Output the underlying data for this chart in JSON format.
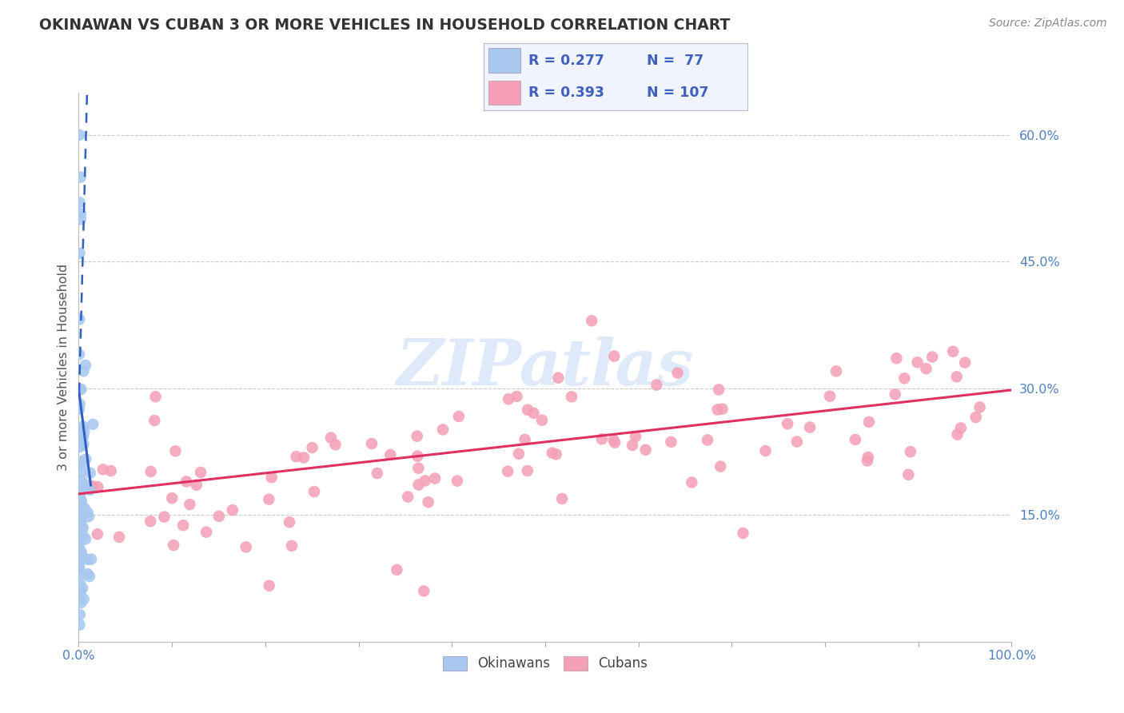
{
  "title": "OKINAWAN VS CUBAN 3 OR MORE VEHICLES IN HOUSEHOLD CORRELATION CHART",
  "source_text": "Source: ZipAtlas.com",
  "ylabel": "3 or more Vehicles in Household",
  "xlim": [
    0.0,
    1.0
  ],
  "ylim": [
    0.0,
    0.65
  ],
  "xtick_vals": [
    0.0,
    0.1,
    0.2,
    0.3,
    0.4,
    0.5,
    0.6,
    0.7,
    0.8,
    0.9,
    1.0
  ],
  "xtick_labels": [
    "0.0%",
    "",
    "",
    "",
    "",
    "",
    "",
    "",
    "",
    "",
    "100.0%"
  ],
  "ytick_vals": [
    0.0,
    0.15,
    0.3,
    0.45,
    0.6
  ],
  "ytick_labels": [
    "",
    "15.0%",
    "30.0%",
    "45.0%",
    "60.0%"
  ],
  "okinawan_color": "#A8C8F0",
  "cuban_color": "#F4A0B8",
  "okinawan_line_color": "#3060C0",
  "cuban_line_color": "#E03060",
  "legend_label_okinawan": "Okinawans",
  "legend_label_cuban": "Cubans",
  "watermark_text": "ZIPatlas",
  "watermark_color": "#C8DCF8",
  "title_color": "#333333",
  "source_color": "#888888",
  "ylabel_color": "#555555",
  "ytick_color": "#5080C0",
  "xtick_color": "#5080C0",
  "grid_color": "#CCCCCC",
  "legend_text_color": "#4060C0",
  "legend_box_color": "#F0F4FF"
}
